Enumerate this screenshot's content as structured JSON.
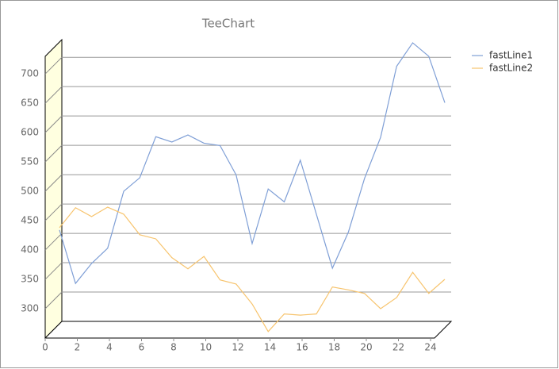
{
  "chart_data": {
    "type": "line",
    "title": "TeeChart",
    "x": [
      0,
      1,
      2,
      3,
      4,
      5,
      6,
      7,
      8,
      9,
      10,
      11,
      12,
      13,
      14,
      15,
      16,
      17,
      18,
      19,
      20,
      21,
      22,
      23,
      24
    ],
    "series": [
      {
        "name": "fastLine1",
        "color": "#7f9fd6",
        "values": [
          407,
          316,
          350,
          376,
          473,
          496,
          566,
          557,
          569,
          555,
          551,
          501,
          384,
          477,
          455,
          526,
          434,
          342,
          404,
          495,
          565,
          686,
          726,
          703,
          624
        ]
      },
      {
        "name": "fastLine2",
        "color": "#f7c46e",
        "values": [
          411,
          445,
          430,
          446,
          434,
          399,
          392,
          360,
          341,
          362,
          322,
          315,
          281,
          234,
          264,
          262,
          264,
          310,
          305,
          299,
          273,
          292,
          335,
          299,
          323
        ]
      }
    ],
    "xlim": [
      0,
      24
    ],
    "xticks": [
      0,
      2,
      4,
      6,
      8,
      10,
      12,
      14,
      16,
      18,
      20,
      22,
      24
    ],
    "ylim": [
      250,
      730
    ],
    "yticks": [
      300,
      350,
      400,
      450,
      500,
      550,
      600,
      650,
      700
    ],
    "grid": true,
    "legend": "right",
    "view3d": true
  }
}
